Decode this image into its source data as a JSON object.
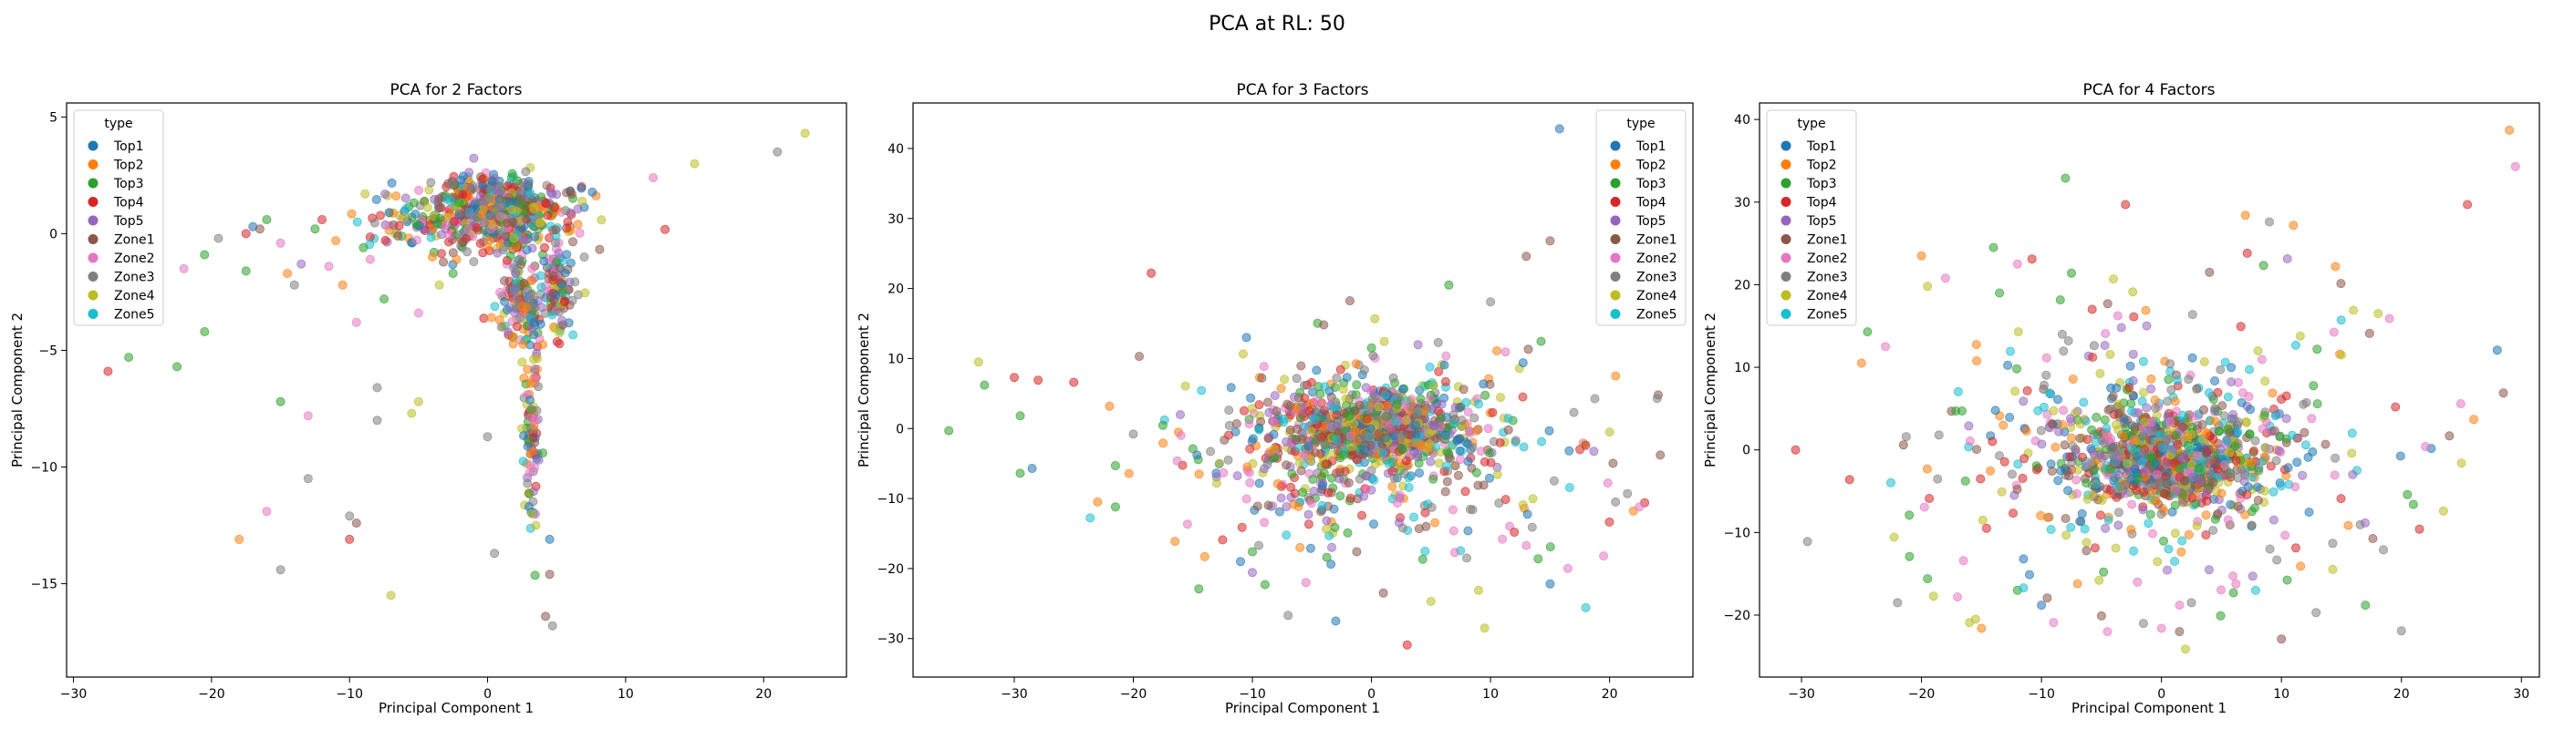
{
  "suptitle": "PCA at RL: 50",
  "legend_title": "type",
  "categories": [
    "Top1",
    "Top2",
    "Top3",
    "Top4",
    "Top5",
    "Zone1",
    "Zone2",
    "Zone3",
    "Zone4",
    "Zone5"
  ],
  "colors": {
    "Top1": "#1f77b4",
    "Top2": "#ff7f0e",
    "Top3": "#2ca02c",
    "Top4": "#d62728",
    "Top5": "#9467bd",
    "Zone1": "#8c564b",
    "Zone2": "#e377c2",
    "Zone3": "#7f7f7f",
    "Zone4": "#bcbd22",
    "Zone5": "#17becf"
  },
  "chart_data": [
    {
      "type": "scatter",
      "title": "PCA for 2 Factors",
      "xlabel": "Principal Component 1",
      "ylabel": "Principal Component 2",
      "xlim": [
        -30.5,
        26
      ],
      "ylim": [
        -19,
        5.6
      ],
      "xticks": [
        -30,
        -20,
        -10,
        0,
        10,
        20
      ],
      "yticks": [
        5,
        0,
        -5,
        -10,
        -15
      ],
      "legend": "upper-left",
      "point_count": 1200,
      "points": [
        [
          -27.5,
          -5.9,
          "Top4"
        ],
        [
          -26,
          -5.3,
          "Top3"
        ],
        [
          -22.5,
          -5.7,
          "Top3"
        ],
        [
          -22,
          -1.5,
          "Zone2"
        ],
        [
          -20.5,
          -4.2,
          "Top3"
        ],
        [
          -20.5,
          -0.9,
          "Top3"
        ],
        [
          -19.5,
          -0.2,
          "Zone3"
        ],
        [
          -18,
          -13.1,
          "Top2"
        ],
        [
          -17.5,
          0.0,
          "Top4"
        ],
        [
          -17.5,
          -1.6,
          "Top3"
        ],
        [
          -17,
          0.3,
          "Top1"
        ],
        [
          -16.5,
          0.2,
          "Zone1"
        ],
        [
          -16,
          -11.9,
          "Zone2"
        ],
        [
          -16,
          0.6,
          "Top3"
        ],
        [
          -15,
          -0.4,
          "Zone2"
        ],
        [
          -15,
          -7.2,
          "Top3"
        ],
        [
          -15,
          -14.4,
          "Zone3"
        ],
        [
          -14.5,
          -1.7,
          "Top2"
        ],
        [
          -14,
          -2.2,
          "Zone3"
        ],
        [
          -13.5,
          -1.3,
          "Top5"
        ],
        [
          -13,
          -7.8,
          "Zone2"
        ],
        [
          -13,
          -10.5,
          "Zone3"
        ],
        [
          -12.5,
          0.2,
          "Top3"
        ],
        [
          -12,
          0.6,
          "Top4"
        ],
        [
          -11.5,
          -1.4,
          "Zone2"
        ],
        [
          -11,
          -0.3,
          "Top2"
        ],
        [
          -10.5,
          -2.2,
          "Top2"
        ],
        [
          -10,
          -13.1,
          "Top4"
        ],
        [
          -10,
          -12.1,
          "Zone3"
        ],
        [
          -9.5,
          -3.8,
          "Zone2"
        ],
        [
          -9.5,
          -12.4,
          "Zone1"
        ],
        [
          -9,
          -0.6,
          "Top3"
        ],
        [
          -8.5,
          -1.1,
          "Zone2"
        ],
        [
          -8,
          -6.6,
          "Zone3"
        ],
        [
          -8,
          -8.0,
          "Zone3"
        ],
        [
          -7.5,
          -2.8,
          "Top3"
        ],
        [
          -7,
          -15.5,
          "Zone4"
        ],
        [
          -6.5,
          -0.1,
          "Zone1"
        ],
        [
          -5.5,
          -7.7,
          "Zone4"
        ],
        [
          -5,
          -7.2,
          "Zone4"
        ],
        [
          -5,
          -3.4,
          "Zone2"
        ],
        [
          -4,
          -1.0,
          "Top2"
        ],
        [
          -3.5,
          -2.2,
          "Zone4"
        ],
        [
          -2.5,
          -1.7,
          "Top3"
        ],
        [
          -1,
          -1.2,
          "Zone3"
        ],
        [
          0,
          -8.7,
          "Zone3"
        ],
        [
          0.5,
          -13.7,
          "Zone3"
        ],
        [
          1,
          -4.0,
          "Zone3"
        ],
        [
          3,
          -11.7,
          "Top1"
        ],
        [
          3.2,
          -12.0,
          "Zone4"
        ],
        [
          3.5,
          -12.5,
          "Zone4"
        ],
        [
          4.2,
          -16.4,
          "Zone1"
        ],
        [
          4.5,
          -14.6,
          "Zone1"
        ],
        [
          4.7,
          -16.8,
          "Zone3"
        ],
        [
          4.5,
          -13.1,
          "Top1"
        ],
        [
          4,
          -9.4,
          "Top3"
        ],
        [
          5,
          -1.2,
          "Top3"
        ],
        [
          6,
          1.8,
          "Zone1"
        ],
        [
          7,
          -1.0,
          "Zone3"
        ],
        [
          12,
          2.4,
          "Zone2"
        ],
        [
          15,
          3.0,
          "Zone4"
        ],
        [
          21,
          3.5,
          "Zone3"
        ],
        [
          23,
          4.3,
          "Zone4"
        ]
      ],
      "clusters": [
        {
          "cx": 0.5,
          "cy": 1.0,
          "sx": 2.6,
          "sy": 0.8,
          "n": 520
        },
        {
          "cx": -4.5,
          "cy": 0.4,
          "sx": 2.5,
          "sy": 0.6,
          "n": 80
        },
        {
          "cx": 2.5,
          "cy": -3.2,
          "sx": 0.9,
          "sy": 0.9,
          "n": 110
        },
        {
          "cx": 5.3,
          "cy": -2.4,
          "sx": 0.6,
          "sy": 1.0,
          "n": 90
        },
        {
          "cx": 3.2,
          "cy": -7.5,
          "sx": 0.3,
          "sy": 2.6,
          "n": 90
        },
        {
          "cx": 2.0,
          "cy": -1.0,
          "sx": 0.4,
          "sy": 1.6,
          "n": 60
        }
      ]
    },
    {
      "type": "scatter",
      "title": "PCA for 3 Factors",
      "xlabel": "Principal Component 1",
      "ylabel": "Principal Component 2",
      "xlim": [
        -38.5,
        27
      ],
      "ylim": [
        -35.5,
        46.5
      ],
      "xticks": [
        -30,
        -20,
        -10,
        0,
        10,
        20
      ],
      "yticks": [
        40,
        30,
        20,
        10,
        0,
        -10,
        -20,
        -30
      ],
      "legend": "upper-right",
      "point_count": 1200,
      "points": [
        [
          -35.5,
          -0.3,
          "Top3"
        ],
        [
          -33,
          9.5,
          "Zone4"
        ],
        [
          -32.5,
          6.2,
          "Top3"
        ],
        [
          -30,
          7.3,
          "Top4"
        ],
        [
          -29.5,
          -6.4,
          "Top3"
        ],
        [
          -29.5,
          1.8,
          "Top3"
        ],
        [
          -28.5,
          -5.7,
          "Top1"
        ],
        [
          -28,
          6.9,
          "Top4"
        ],
        [
          -25,
          6.6,
          "Top4"
        ],
        [
          -23,
          -10.5,
          "Top2"
        ],
        [
          -22,
          3.2,
          "Top2"
        ],
        [
          -21.5,
          -5.3,
          "Top3"
        ],
        [
          -21.5,
          -11.2,
          "Top3"
        ],
        [
          -20,
          -0.8,
          "Zone3"
        ],
        [
          -19.5,
          10.3,
          "Zone1"
        ],
        [
          -18.5,
          22.2,
          "Top4"
        ],
        [
          -17.5,
          -2.1,
          "Top2"
        ],
        [
          -16.5,
          -16.1,
          "Top2"
        ],
        [
          -16,
          -1.0,
          "Zone2"
        ],
        [
          -15,
          -2.9,
          "Top3"
        ],
        [
          -14.5,
          -22.9,
          "Top3"
        ],
        [
          -14,
          -18.3,
          "Top2"
        ],
        [
          -13,
          -7.8,
          "Zone4"
        ],
        [
          -12.5,
          -15.9,
          "Top4"
        ],
        [
          -11,
          -19.0,
          "Top1"
        ],
        [
          -10.5,
          13.0,
          "Top1"
        ],
        [
          -10,
          -17.6,
          "Top3"
        ],
        [
          -9,
          -13.4,
          "Zone2"
        ],
        [
          -8.5,
          -3.3,
          "Top2"
        ],
        [
          -7,
          -26.7,
          "Zone3"
        ],
        [
          -6,
          -17.0,
          "Top2"
        ],
        [
          -5.5,
          -22.0,
          "Zone2"
        ],
        [
          -4,
          14.8,
          "Zone1"
        ],
        [
          -3,
          -27.5,
          "Top1"
        ],
        [
          -2,
          -14.9,
          "Top3"
        ],
        [
          0,
          11.5,
          "Top3"
        ],
        [
          1,
          -23.5,
          "Zone1"
        ],
        [
          3,
          -30.9,
          "Top4"
        ],
        [
          4,
          -14.3,
          "Zone1"
        ],
        [
          5,
          -24.7,
          "Zone4"
        ],
        [
          6.5,
          20.5,
          "Top3"
        ],
        [
          7,
          -17.7,
          "Zone2"
        ],
        [
          8,
          -18.5,
          "Zone3"
        ],
        [
          9,
          -23.1,
          "Zone4"
        ],
        [
          9.5,
          -28.5,
          "Zone4"
        ],
        [
          10,
          18.1,
          "Zone3"
        ],
        [
          11,
          -15.8,
          "Zone2"
        ],
        [
          12,
          -14.8,
          "Top4"
        ],
        [
          13,
          -16.7,
          "Zone2"
        ],
        [
          13.5,
          -14.1,
          "Zone3"
        ],
        [
          13,
          24.6,
          "Zone1"
        ],
        [
          14,
          -18.6,
          "Top3"
        ],
        [
          15,
          26.8,
          "Zone1"
        ],
        [
          15,
          -22.2,
          "Top1"
        ],
        [
          15.8,
          42.8,
          "Top1"
        ],
        [
          16.5,
          -20.0,
          "Zone2"
        ],
        [
          18,
          -25.6,
          "Zone5"
        ],
        [
          19.5,
          -18.2,
          "Zone2"
        ],
        [
          20,
          -0.5,
          "Zone4"
        ],
        [
          20.5,
          -10.5,
          "Zone3"
        ],
        [
          21.5,
          -9.3,
          "Zone3"
        ],
        [
          22,
          -11.8,
          "Top2"
        ],
        [
          22.5,
          -11.2,
          "Zone2"
        ],
        [
          24,
          4.3,
          "Zone3"
        ],
        [
          20.5,
          7.5,
          "Top2"
        ],
        [
          17,
          2.3,
          "Zone3"
        ],
        [
          18,
          -2.4,
          "Top4"
        ],
        [
          9,
          3.5,
          "Zone5"
        ],
        [
          8.5,
          -11.6,
          "Zone3"
        ]
      ],
      "clusters": [
        {
          "cx": 0.5,
          "cy": 0.0,
          "sx": 4.2,
          "sy": 2.8,
          "n": 740
        },
        {
          "cx": -3,
          "cy": -4,
          "sx": 6,
          "sy": 6.5,
          "n": 260
        },
        {
          "cx": 3,
          "cy": -3,
          "sx": 9,
          "sy": 7,
          "n": 140
        }
      ]
    },
    {
      "type": "scatter",
      "title": "PCA for 4 Factors",
      "xlabel": "Principal Component 1",
      "ylabel": "Principal Component 2",
      "xlim": [
        -33.5,
        31.5
      ],
      "ylim": [
        -27.5,
        42
      ],
      "xticks": [
        -30,
        -20,
        -10,
        0,
        10,
        20,
        30
      ],
      "yticks": [
        40,
        30,
        20,
        10,
        0,
        -10,
        -20
      ],
      "legend": "upper-left",
      "point_count": 1200,
      "points": [
        [
          -30.5,
          0.0,
          "Top4"
        ],
        [
          -29.5,
          -11.1,
          "Zone3"
        ],
        [
          -26,
          -3.6,
          "Top4"
        ],
        [
          -25,
          10.5,
          "Top2"
        ],
        [
          -24.5,
          14.3,
          "Top3"
        ],
        [
          -23,
          12.5,
          "Zone2"
        ],
        [
          -22,
          -18.5,
          "Zone3"
        ],
        [
          -21.5,
          0.6,
          "Zone1"
        ],
        [
          -21,
          -12.9,
          "Top3"
        ],
        [
          -20,
          23.5,
          "Top2"
        ],
        [
          -19.5,
          -15.6,
          "Top3"
        ],
        [
          -19.5,
          19.8,
          "Zone4"
        ],
        [
          -19,
          -17.7,
          "Zone4"
        ],
        [
          -18,
          20.8,
          "Zone2"
        ],
        [
          -17,
          -17.8,
          "Zone2"
        ],
        [
          -16.5,
          -13.4,
          "Zone2"
        ],
        [
          -16,
          -20.9,
          "Zone4"
        ],
        [
          -15.5,
          -20.5,
          "Zone4"
        ],
        [
          -15,
          -21.6,
          "Top2"
        ],
        [
          -14,
          24.5,
          "Top3"
        ],
        [
          -13.5,
          19.0,
          "Top3"
        ],
        [
          -12,
          22.5,
          "Zone2"
        ],
        [
          -12,
          -17.0,
          "Top3"
        ],
        [
          -11.5,
          -16.7,
          "Zone5"
        ],
        [
          -11,
          -15.1,
          "Top1"
        ],
        [
          -10,
          -18.8,
          "Top1"
        ],
        [
          -9,
          -20.9,
          "Zone2"
        ],
        [
          -8,
          32.9,
          "Top3"
        ],
        [
          -7.5,
          21.4,
          "Top3"
        ],
        [
          -7,
          -16.2,
          "Top2"
        ],
        [
          -5,
          -20.1,
          "Zone1"
        ],
        [
          -4.5,
          -22.0,
          "Zone2"
        ],
        [
          -4,
          20.7,
          "Zone4"
        ],
        [
          -3,
          29.7,
          "Top4"
        ],
        [
          -1.5,
          -21.0,
          "Zone3"
        ],
        [
          -2,
          -16.0,
          "Zone2"
        ],
        [
          0,
          -21.6,
          "Zone2"
        ],
        [
          1.5,
          -18.8,
          "Zone2"
        ],
        [
          2,
          -24.1,
          "Zone4"
        ],
        [
          2.5,
          -18.5,
          "Zone3"
        ],
        [
          1.5,
          -22.0,
          "Zone1"
        ],
        [
          4,
          21.5,
          "Zone1"
        ],
        [
          6,
          -17.3,
          "Top3"
        ],
        [
          7,
          28.4,
          "Top2"
        ],
        [
          9,
          27.6,
          "Zone3"
        ],
        [
          10,
          -22.9,
          "Zone1"
        ],
        [
          11,
          27.2,
          "Top2"
        ],
        [
          14.5,
          22.2,
          "Top2"
        ],
        [
          16,
          16.9,
          "Zone4"
        ],
        [
          17,
          -18.8,
          "Top3"
        ],
        [
          18.5,
          -12.1,
          "Zone3"
        ],
        [
          19,
          15.9,
          "Zone2"
        ],
        [
          19.5,
          5.2,
          "Top4"
        ],
        [
          20,
          -21.9,
          "Zone3"
        ],
        [
          20.5,
          -5.4,
          "Top3"
        ],
        [
          21,
          -6.6,
          "Top3"
        ],
        [
          22,
          0.4,
          "Zone2"
        ],
        [
          23.5,
          -7.4,
          "Zone4"
        ],
        [
          24,
          1.7,
          "Zone1"
        ],
        [
          25,
          -1.6,
          "Zone4"
        ],
        [
          25.5,
          29.7,
          "Top4"
        ],
        [
          28.5,
          6.9,
          "Zone1"
        ],
        [
          29,
          38.7,
          "Top2"
        ],
        [
          29.5,
          34.3,
          "Zone2"
        ],
        [
          21.5,
          -9.6,
          "Top4"
        ],
        [
          15,
          11.5,
          "Zone4"
        ]
      ],
      "clusters": [
        {
          "cx": 0.5,
          "cy": -1.0,
          "sx": 3.8,
          "sy": 2.8,
          "n": 700
        },
        {
          "cx": -1,
          "cy": 0,
          "sx": 8,
          "sy": 7,
          "n": 400
        },
        {
          "cx": 3,
          "cy": 2,
          "sx": 10,
          "sy": 9,
          "n": 100
        }
      ]
    }
  ]
}
